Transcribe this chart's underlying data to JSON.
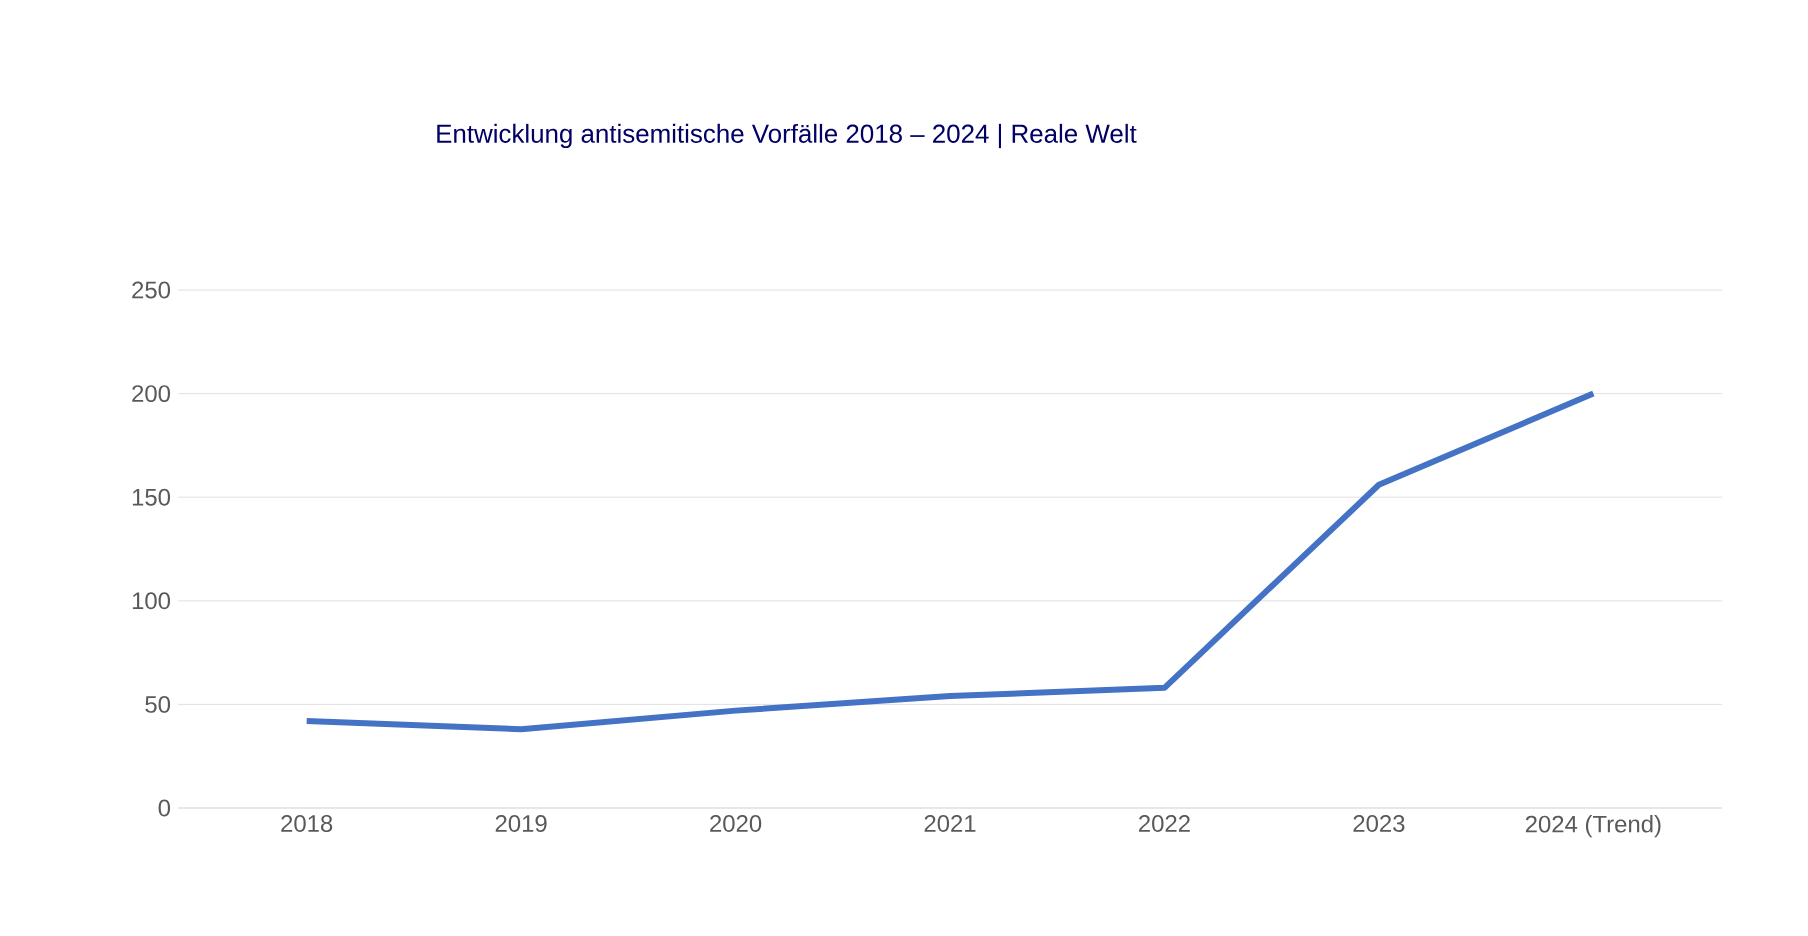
{
  "chart_data": {
    "type": "line",
    "title": "Entwicklung antisemitische Vorfälle 2018 – 2024 | Reale Welt",
    "categories": [
      "2018",
      "2019",
      "2020",
      "2021",
      "2022",
      "2023",
      "2024 (Trend)"
    ],
    "series": [
      {
        "color": "#4472c4",
        "values": [
          42,
          38,
          47,
          54,
          58,
          156,
          200
        ]
      }
    ],
    "ylim": [
      0,
      250
    ],
    "yticks": [
      0,
      50,
      100,
      150,
      200,
      250
    ],
    "grid": "y",
    "marker": "none",
    "line_style": "solid"
  }
}
